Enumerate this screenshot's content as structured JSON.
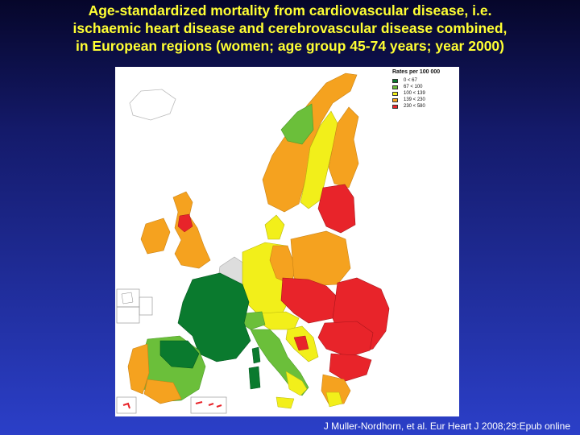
{
  "title": {
    "line1": "Age-standardized mortality from cardiovascular disease, i.e.",
    "line2": "ischaemic heart disease and cerebrovascular disease combined,",
    "line3": "in European regions (women; age group 45-74 years; year 2000)"
  },
  "legend": {
    "title": "Rates per 100 000",
    "items": [
      {
        "label": "0 < 67",
        "color": "#0a7a2e"
      },
      {
        "label": "67 < 100",
        "color": "#6bbf3a"
      },
      {
        "label": "100 < 139",
        "color": "#f2ef1a"
      },
      {
        "label": "139 < 230",
        "color": "#f5a21f"
      },
      {
        "label": "230 < 580",
        "color": "#e8242a"
      }
    ]
  },
  "citation": "J Muller-Nordhorn, et al. Eur Heart J 2008;29:Epub online"
}
